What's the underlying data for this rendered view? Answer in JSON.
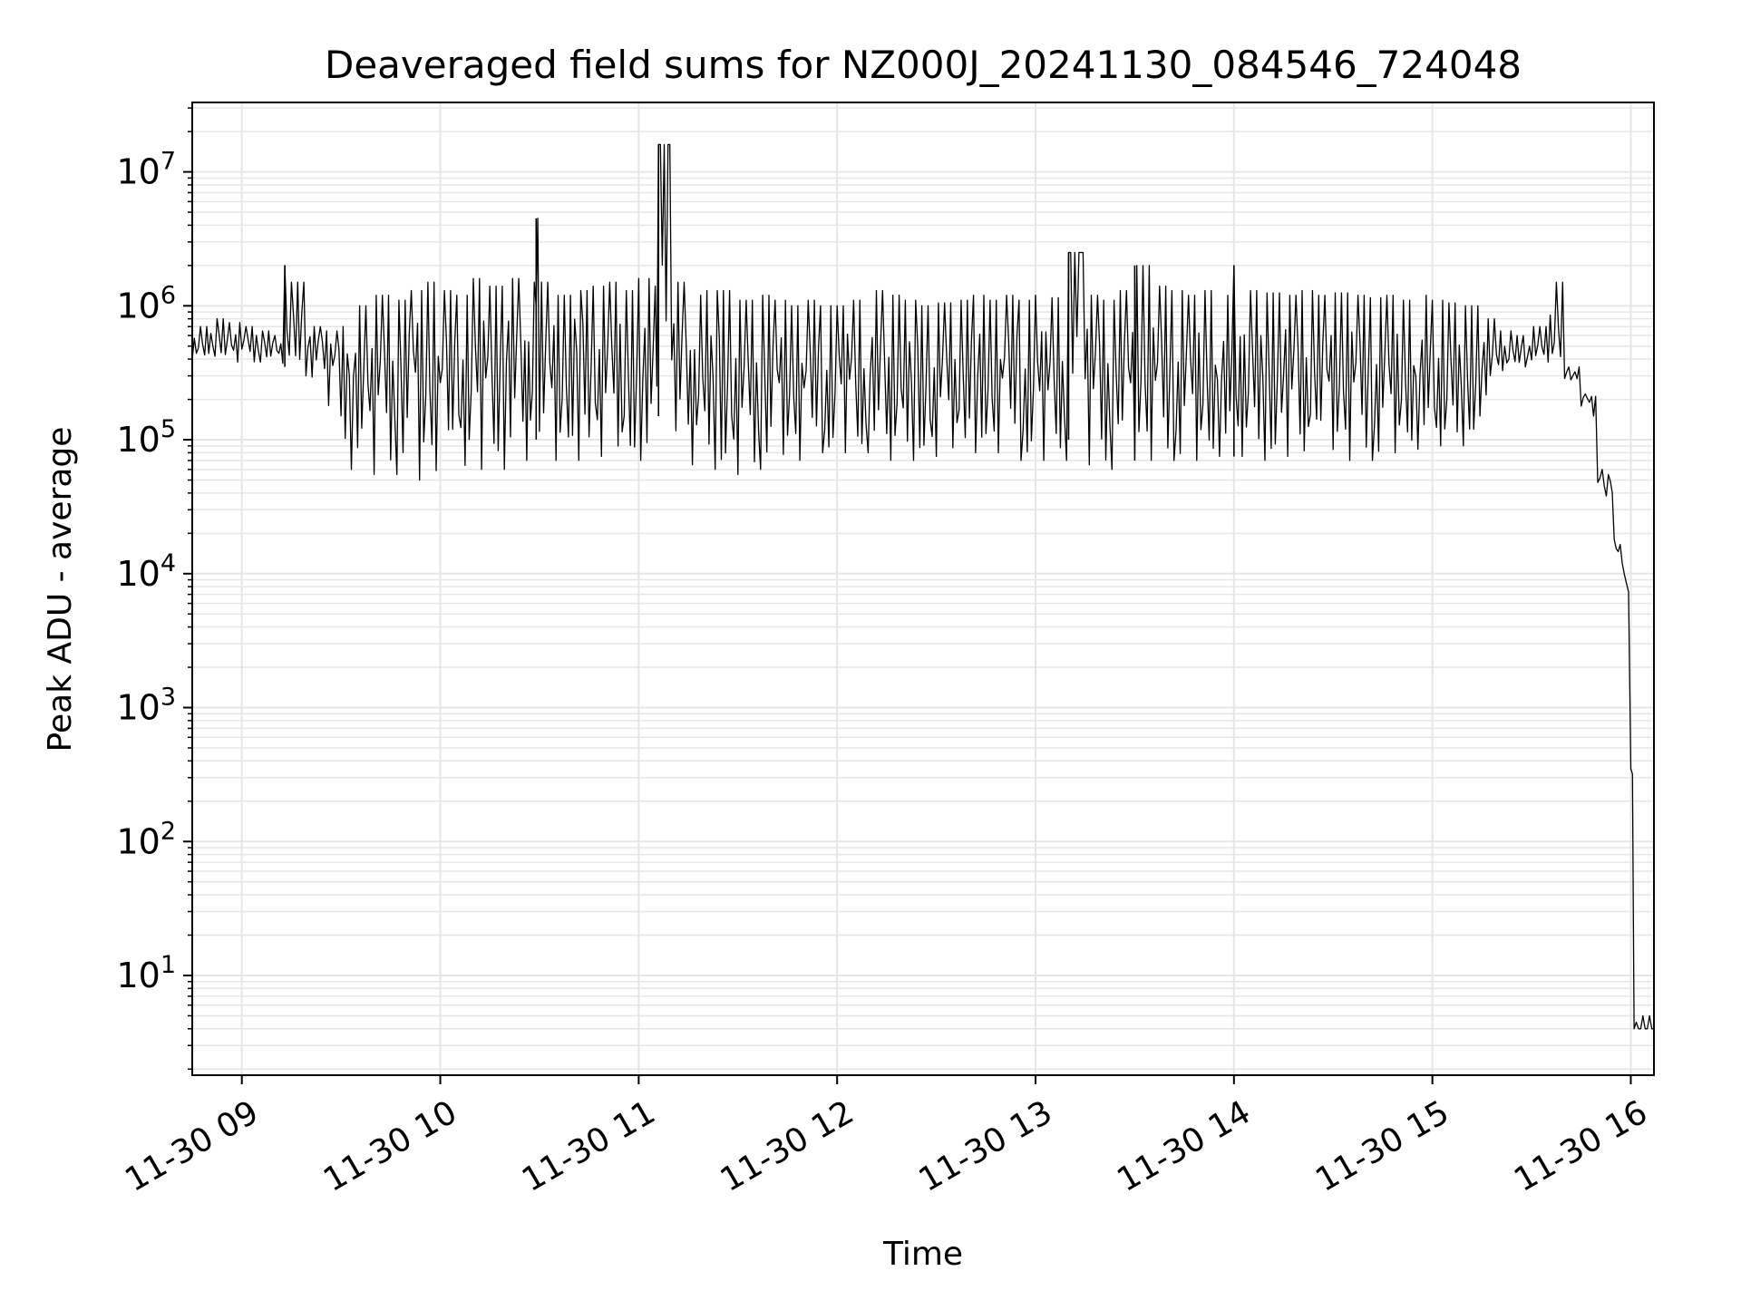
{
  "chart_data": {
    "type": "line",
    "title": "Deaveraged field sums for NZ000J_20241130_084546_724048",
    "xlabel": "Time",
    "ylabel": "Peak ADU - average",
    "y_scale": "log",
    "y_ticks": [
      {
        "value": 10,
        "base": "10",
        "exp": "1"
      },
      {
        "value": 100,
        "base": "10",
        "exp": "2"
      },
      {
        "value": 1000,
        "base": "10",
        "exp": "3"
      },
      {
        "value": 10000,
        "base": "10",
        "exp": "4"
      },
      {
        "value": 100000,
        "base": "10",
        "exp": "5"
      },
      {
        "value": 1000000,
        "base": "10",
        "exp": "6"
      },
      {
        "value": 10000000,
        "base": "10",
        "exp": "7"
      }
    ],
    "ylim": [
      1.8,
      33000000
    ],
    "xlim": [
      "2024-11-30 08:45",
      "2024-11-30 16:07"
    ],
    "x_ticks": [
      {
        "value": "2024-11-30 09:00",
        "label": "11-30 09"
      },
      {
        "value": "2024-11-30 10:00",
        "label": "11-30 10"
      },
      {
        "value": "2024-11-30 11:00",
        "label": "11-30 11"
      },
      {
        "value": "2024-11-30 12:00",
        "label": "11-30 12"
      },
      {
        "value": "2024-11-30 13:00",
        "label": "11-30 13"
      },
      {
        "value": "2024-11-30 14:00",
        "label": "11-30 14"
      },
      {
        "value": "2024-11-30 15:00",
        "label": "11-30 15"
      },
      {
        "value": "2024-11-30 16:00",
        "label": "11-30 16"
      }
    ],
    "grid": true,
    "line_color": "#000000",
    "grid_color": "#e6e6e6",
    "series": [
      {
        "x": [
          "2024-11-30 08:45",
          "2024-11-30 08:50",
          "2024-11-30 08:55",
          "2024-11-30 09:00",
          "2024-11-30 09:05",
          "2024-11-30 09:10",
          "2024-11-30 09:13",
          "2024-11-30 09:15",
          "2024-11-30 09:20",
          "2024-11-30 09:25",
          "2024-11-30 09:30",
          "2024-11-30 09:35",
          "2024-11-30 09:40",
          "2024-11-30 09:45",
          "2024-11-30 09:50",
          "2024-11-30 09:55",
          "2024-11-30 10:00",
          "2024-11-30 10:05",
          "2024-11-30 10:10",
          "2024-11-30 10:15",
          "2024-11-30 10:20",
          "2024-11-30 10:25",
          "2024-11-30 10:29",
          "2024-11-30 10:30",
          "2024-11-30 10:35",
          "2024-11-30 10:40",
          "2024-11-30 10:45",
          "2024-11-30 10:50",
          "2024-11-30 10:55",
          "2024-11-30 11:00",
          "2024-11-30 11:05",
          "2024-11-30 11:06",
          "2024-11-30 11:10",
          "2024-11-30 11:15",
          "2024-11-30 11:20",
          "2024-11-30 11:25",
          "2024-11-30 11:30",
          "2024-11-30 11:35",
          "2024-11-30 11:40",
          "2024-11-30 11:45",
          "2024-11-30 11:50",
          "2024-11-30 11:55",
          "2024-11-30 12:00",
          "2024-11-30 12:05",
          "2024-11-30 12:10",
          "2024-11-30 12:15",
          "2024-11-30 12:20",
          "2024-11-30 12:25",
          "2024-11-30 12:30",
          "2024-11-30 12:35",
          "2024-11-30 12:40",
          "2024-11-30 12:45",
          "2024-11-30 12:50",
          "2024-11-30 12:55",
          "2024-11-30 13:00",
          "2024-11-30 13:05",
          "2024-11-30 13:10",
          "2024-11-30 13:15",
          "2024-11-30 13:20",
          "2024-11-30 13:25",
          "2024-11-30 13:30",
          "2024-11-30 13:35",
          "2024-11-30 13:40",
          "2024-11-30 13:45",
          "2024-11-30 13:50",
          "2024-11-30 13:55",
          "2024-11-30 14:00",
          "2024-11-30 14:05",
          "2024-11-30 14:10",
          "2024-11-30 14:15",
          "2024-11-30 14:20",
          "2024-11-30 14:25",
          "2024-11-30 14:30",
          "2024-11-30 14:35",
          "2024-11-30 14:40",
          "2024-11-30 14:45",
          "2024-11-30 14:50",
          "2024-11-30 14:55",
          "2024-11-30 15:00",
          "2024-11-30 15:05",
          "2024-11-30 15:10",
          "2024-11-30 15:15",
          "2024-11-30 15:20",
          "2024-11-30 15:25",
          "2024-11-30 15:30",
          "2024-11-30 15:35",
          "2024-11-30 15:40",
          "2024-11-30 15:45",
          "2024-11-30 15:50",
          "2024-11-30 15:52",
          "2024-11-30 15:55",
          "2024-11-30 15:58",
          "2024-11-30 16:00",
          "2024-11-30 16:01",
          "2024-11-30 16:03",
          "2024-11-30 16:05",
          "2024-11-30 16:07"
        ],
        "y": [
          450000,
          500000,
          480000,
          520000,
          470000,
          450000,
          460000,
          600000,
          500000,
          400000,
          300000,
          200000,
          300000,
          150000,
          400000,
          120000,
          300000,
          130000,
          350000,
          140000,
          400000,
          160000,
          4500000,
          300000,
          130000,
          500000,
          150000,
          350000,
          120000,
          300000,
          160000,
          16000000,
          400000,
          150000,
          300000,
          110000,
          250000,
          120000,
          300000,
          130000,
          280000,
          120000,
          350000,
          130000,
          300000,
          120000,
          280000,
          110000,
          300000,
          140000,
          320000,
          130000,
          350000,
          120000,
          300000,
          150000,
          2500000,
          350000,
          130000,
          300000,
          140000,
          320000,
          120000,
          300000,
          130000,
          280000,
          140000,
          300000,
          120000,
          350000,
          130000,
          300000,
          140000,
          320000,
          130000,
          280000,
          140000,
          300000,
          130000,
          260000,
          110000,
          350000,
          380000,
          420000,
          450000,
          450000,
          300000,
          200000,
          50000,
          45000,
          15000,
          8000,
          300,
          4,
          4,
          4,
          4
        ],
        "spike_min": [
          400000,
          420000,
          380000,
          350000,
          380000,
          360000,
          350000,
          300000,
          250000,
          180000,
          60000,
          60000,
          55000,
          55000,
          50000,
          50000,
          55000,
          55000,
          60000,
          60000,
          65000,
          70000,
          100000,
          70000,
          70000,
          70000,
          75000,
          70000,
          70000,
          70000,
          70000,
          150000,
          70000,
          65000,
          60000,
          55000,
          55000,
          60000,
          60000,
          70000,
          75000,
          80000,
          80000,
          80000,
          75000,
          70000,
          70000,
          75000,
          75000,
          80000,
          80000,
          80000,
          75000,
          70000,
          70000,
          70000,
          100000,
          65000,
          60000,
          70000,
          70000,
          70000,
          70000,
          70000,
          70000,
          75000,
          75000,
          70000,
          70000,
          75000,
          75000,
          75000,
          75000,
          70000,
          70000,
          80000,
          85000,
          85000,
          90000,
          90000,
          120000,
          200000,
          320000,
          350000,
          380000,
          380000,
          280000,
          150000,
          40000,
          38000,
          12000,
          6000,
          200,
          4,
          4,
          4,
          4
        ],
        "spike_max": [
          700000,
          800000,
          750000,
          700000,
          650000,
          600000,
          2000000,
          1500000,
          700000,
          650000,
          700000,
          1000000,
          1200000,
          1100000,
          1300000,
          1500000,
          1300000,
          1200000,
          1600000,
          1400000,
          1600000,
          1500000,
          4500000,
          1500000,
          1200000,
          1300000,
          1400000,
          1500000,
          1300000,
          1600000,
          1400000,
          16000000,
          1500000,
          1200000,
          1300000,
          1300000,
          1100000,
          1200000,
          1100000,
          1000000,
          1100000,
          1000000,
          1000000,
          1100000,
          1300000,
          1200000,
          1100000,
          1000000,
          1050000,
          1100000,
          1200000,
          1100000,
          1200000,
          1100000,
          1200000,
          1150000,
          2500000,
          1200000,
          1100000,
          1300000,
          2000000,
          1400000,
          1300000,
          1200000,
          1300000,
          1200000,
          2000000,
          1300000,
          1250000,
          1200000,
          1300000,
          1200000,
          1250000,
          1200000,
          1150000,
          1200000,
          1100000,
          1200000,
          1100000,
          1050000,
          1000000,
          800000,
          650000,
          600000,
          700000,
          1500000,
          350000,
          220000,
          60000,
          55000,
          18000,
          10000,
          350,
          5,
          5,
          5,
          5
        ]
      }
    ]
  }
}
